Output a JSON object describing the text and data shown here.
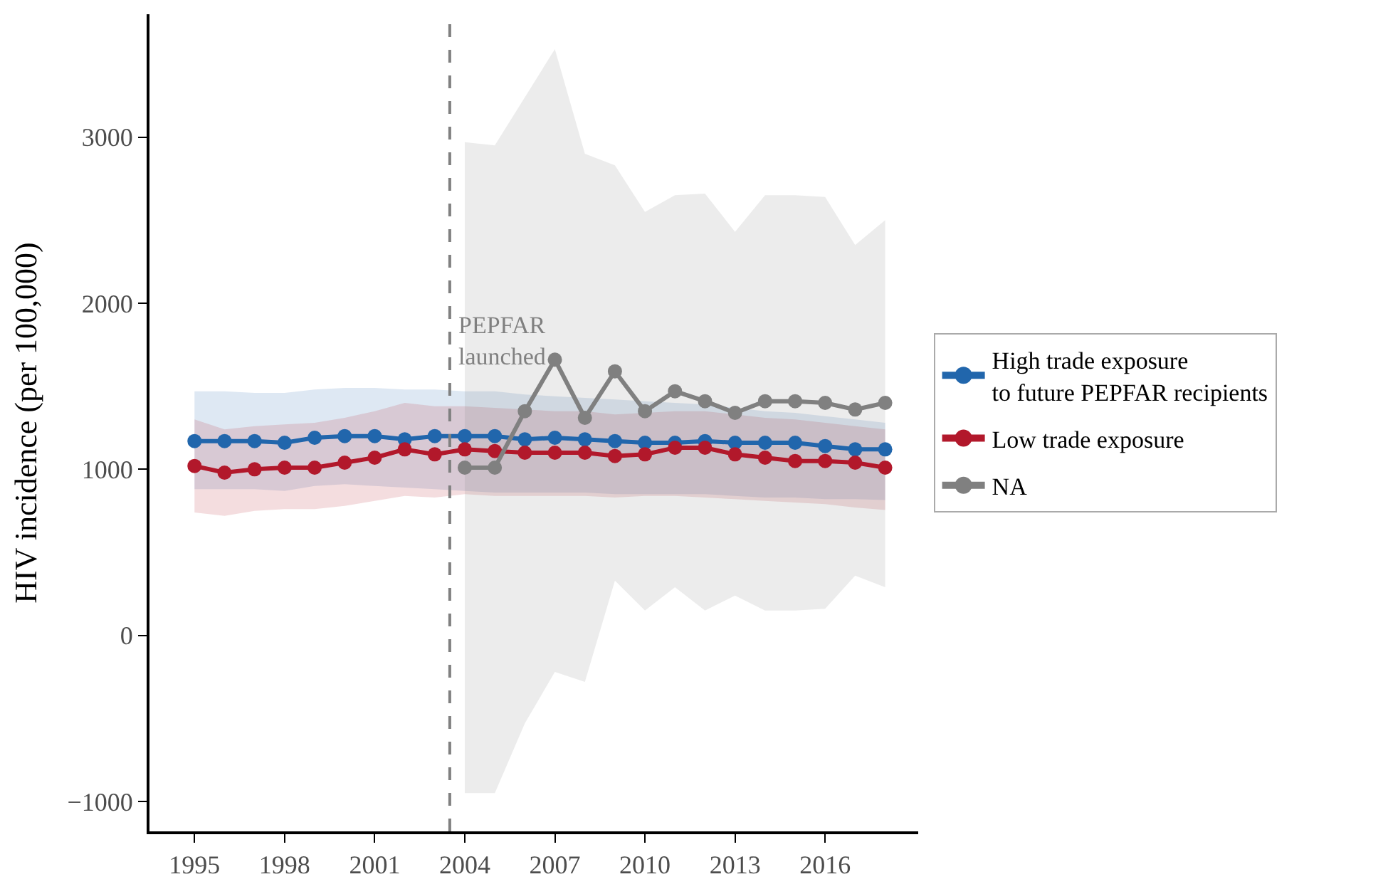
{
  "chart_data": {
    "type": "line",
    "ylabel": "HIV incidence (per 100,000)",
    "x": [
      1995,
      1996,
      1997,
      1998,
      1999,
      2000,
      2001,
      2002,
      2003,
      2004,
      2005,
      2006,
      2007,
      2008,
      2009,
      2010,
      2011,
      2012,
      2013,
      2014,
      2015,
      2016,
      2017,
      2018
    ],
    "series": [
      {
        "name": "High trade exposure\nto future PEPFAR recipients",
        "color": "#2166ac",
        "values": [
          1170,
          1170,
          1170,
          1160,
          1190,
          1200,
          1200,
          1180,
          1200,
          1200,
          1200,
          1180,
          1190,
          1180,
          1170,
          1160,
          1160,
          1170,
          1160,
          1160,
          1160,
          1140,
          1120,
          1120
        ],
        "lower": [
          880,
          880,
          880,
          870,
          900,
          910,
          900,
          890,
          880,
          870,
          860,
          860,
          860,
          860,
          850,
          850,
          850,
          850,
          840,
          830,
          830,
          820,
          820,
          815
        ],
        "upper": [
          1470,
          1470,
          1460,
          1460,
          1480,
          1490,
          1490,
          1480,
          1480,
          1470,
          1470,
          1450,
          1440,
          1430,
          1420,
          1410,
          1400,
          1390,
          1370,
          1350,
          1340,
          1320,
          1300,
          1280
        ]
      },
      {
        "name": "Low trade exposure",
        "color": "#b2182b",
        "values": [
          1020,
          980,
          1000,
          1010,
          1010,
          1040,
          1070,
          1120,
          1090,
          1120,
          1110,
          1100,
          1100,
          1100,
          1080,
          1090,
          1130,
          1130,
          1090,
          1070,
          1050,
          1050,
          1040,
          1010
        ],
        "lower": [
          740,
          720,
          750,
          760,
          760,
          780,
          810,
          840,
          830,
          850,
          840,
          840,
          840,
          840,
          830,
          840,
          840,
          830,
          820,
          810,
          800,
          790,
          770,
          755
        ],
        "upper": [
          1300,
          1240,
          1260,
          1270,
          1280,
          1310,
          1350,
          1400,
          1380,
          1380,
          1370,
          1360,
          1350,
          1350,
          1330,
          1340,
          1350,
          1350,
          1330,
          1310,
          1300,
          1280,
          1260,
          1240
        ]
      },
      {
        "name": "NA",
        "color": "#808080",
        "x": [
          2004,
          2005,
          2006,
          2007,
          2008,
          2009,
          2010,
          2011,
          2012,
          2013,
          2014,
          2015,
          2016,
          2017,
          2018
        ],
        "values": [
          1010,
          1010,
          1350,
          1660,
          1310,
          1590,
          1350,
          1470,
          1410,
          1340,
          1410,
          1410,
          1400,
          1360,
          1400
        ],
        "lower": [
          -950,
          -950,
          -530,
          -220,
          -280,
          330,
          150,
          290,
          150,
          240,
          150,
          150,
          160,
          360,
          290
        ],
        "upper": [
          2970,
          2950,
          3240,
          3530,
          2900,
          2830,
          2550,
          2650,
          2660,
          2430,
          2650,
          2650,
          2640,
          2350,
          2500
        ]
      }
    ],
    "xlim": [
      1993.5,
      2019.1
    ],
    "ylim": [
      -1180,
      3740
    ],
    "xticks": [
      1995,
      1998,
      2001,
      2004,
      2007,
      2010,
      2013,
      2016
    ],
    "yticks": [
      {
        "value": -1000,
        "label": "−1000"
      },
      0,
      1000,
      2000,
      3000
    ],
    "ref_lines": [
      {
        "axis": "x",
        "value": 2003.5,
        "label": "PEPFAR\nlaunched",
        "color": "#808080",
        "line_style": "dashed"
      }
    ],
    "legend": "right",
    "marker": "circle",
    "line_style": "solid"
  }
}
